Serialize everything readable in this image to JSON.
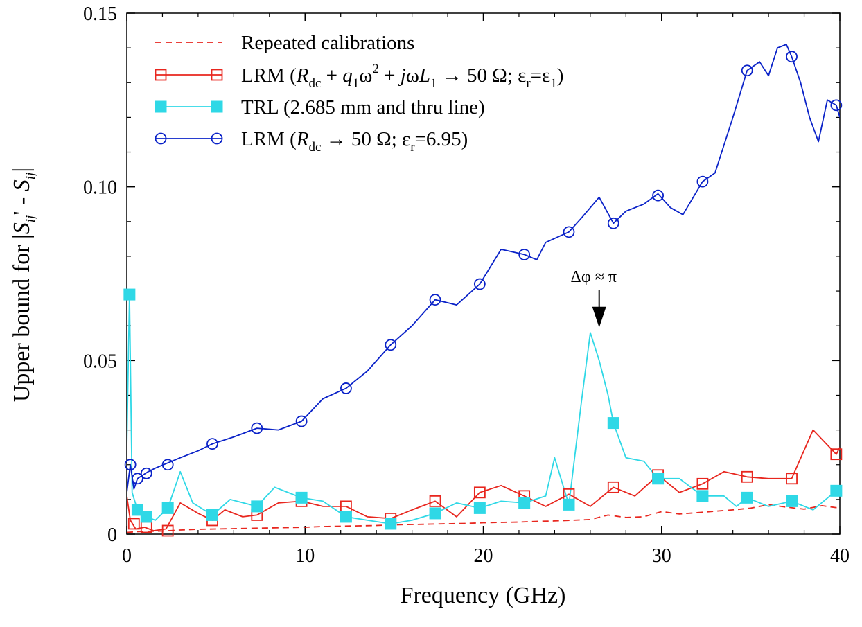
{
  "chart_data": {
    "type": "line",
    "title": "",
    "xlabel": "Frequency (GHz)",
    "ylabel": {
      "prefix": "Upper bound for |",
      "s1": "S",
      "sub1": "ij",
      "prime": "' - ",
      "s2": "S",
      "sub2": "ij",
      "suffix": "|"
    },
    "xlim": [
      0,
      40
    ],
    "ylim": [
      0,
      0.15
    ],
    "xticks": [
      0,
      10,
      20,
      30,
      40
    ],
    "xtick_labels": [
      "0",
      "10",
      "20",
      "30",
      "40"
    ],
    "yticks": [
      0,
      0.05,
      0.1,
      0.15
    ],
    "ytick_labels": [
      "0",
      "0.05",
      "0.10",
      "0.15"
    ],
    "grid": false,
    "legend_position": "top-left",
    "legend": [
      {
        "key": "repeated",
        "parts": [
          {
            "t": "Repeated calibrations"
          }
        ]
      },
      {
        "key": "lrm_full",
        "parts": [
          {
            "t": "LRM ("
          },
          {
            "t": "R",
            "i": true
          },
          {
            "t": "dc",
            "s": "sub"
          },
          {
            "t": " + "
          },
          {
            "t": "q",
            "i": true
          },
          {
            "t": "1",
            "s": "sub"
          },
          {
            "t": "ω"
          },
          {
            "t": "2",
            "s": "sup"
          },
          {
            "t": " + "
          },
          {
            "t": "j",
            "i": true
          },
          {
            "t": "ω"
          },
          {
            "t": "L",
            "i": true
          },
          {
            "t": "1",
            "s": "sub"
          },
          {
            "t": " → 50 Ω; ε"
          },
          {
            "t": "r",
            "s": "sub"
          },
          {
            "t": "=ε"
          },
          {
            "t": "1",
            "s": "sub"
          },
          {
            "t": ")"
          }
        ]
      },
      {
        "key": "trl",
        "parts": [
          {
            "t": "TRL (2.685 mm and thru line)"
          }
        ]
      },
      {
        "key": "lrm_dc",
        "parts": [
          {
            "t": "LRM ("
          },
          {
            "t": "R",
            "i": true
          },
          {
            "t": "dc",
            "s": "sub"
          },
          {
            "t": " → 50 Ω; ε"
          },
          {
            "t": "r",
            "s": "sub"
          },
          {
            "t": "=6.95)"
          }
        ]
      }
    ],
    "annotation": {
      "text": "Δφ ≈ π",
      "x": 26.5,
      "y": 0.0595
    },
    "series": [
      {
        "key": "repeated",
        "color": "#e8261e",
        "dash": true,
        "marker": "none",
        "x": [
          0,
          0.5,
          1,
          2,
          3,
          4,
          5,
          6,
          7,
          8,
          9,
          10,
          11,
          12,
          13,
          14,
          15,
          16,
          17,
          18,
          19,
          20,
          21,
          22,
          23,
          24,
          25,
          26,
          27,
          28,
          29,
          30,
          31,
          32,
          33,
          34,
          35,
          36,
          37,
          38,
          39,
          40
        ],
        "y": [
          0.0005,
          0.0007,
          0.0008,
          0.0009,
          0.0012,
          0.0014,
          0.0015,
          0.0016,
          0.0017,
          0.0018,
          0.0019,
          0.002,
          0.0022,
          0.0023,
          0.0024,
          0.0025,
          0.0027,
          0.0028,
          0.0029,
          0.003,
          0.0031,
          0.0033,
          0.0034,
          0.0035,
          0.0037,
          0.0038,
          0.004,
          0.0042,
          0.0055,
          0.0048,
          0.005,
          0.0065,
          0.0058,
          0.0062,
          0.0066,
          0.007,
          0.0075,
          0.0085,
          0.0078,
          0.0072,
          0.0082,
          0.0075
        ]
      },
      {
        "key": "lrm_full",
        "color": "#e8261e",
        "dash": false,
        "marker": "square-open",
        "x": [
          0,
          0.2,
          0.5,
          1,
          1.5,
          2.2,
          3,
          4,
          4.8,
          5.5,
          6.5,
          7.3,
          8.5,
          9.8,
          11,
          12.3,
          13.5,
          14.8,
          16,
          17.3,
          18.5,
          19.8,
          21,
          22.3,
          23.5,
          24.8,
          26,
          27.3,
          28.5,
          29.8,
          31,
          32.3,
          33.5,
          34.8,
          36,
          37.3,
          38.5,
          39.8,
          40
        ],
        "y": [
          0.011,
          0.004,
          0.0015,
          0.002,
          0.001,
          0.0015,
          0.009,
          0.006,
          0.004,
          0.007,
          0.005,
          0.0055,
          0.009,
          0.0095,
          0.008,
          0.008,
          0.005,
          0.0045,
          0.007,
          0.0095,
          0.005,
          0.012,
          0.014,
          0.011,
          0.008,
          0.0115,
          0.008,
          0.0135,
          0.011,
          0.017,
          0.012,
          0.0145,
          0.018,
          0.0165,
          0.016,
          0.016,
          0.03,
          0.023,
          0.025
        ]
      },
      {
        "key": "trl",
        "color": "#2fd8e6",
        "dash": false,
        "marker": "square-filled",
        "x": [
          0,
          0.15,
          0.3,
          0.6,
          1.1,
          1.6,
          2.3,
          3,
          3.7,
          4.8,
          5.8,
          7.3,
          8.3,
          9.8,
          11,
          12.3,
          13.5,
          14.8,
          16,
          17.3,
          18.5,
          19.8,
          21,
          22.3,
          23.5,
          24,
          24.8,
          25.5,
          26,
          26.5,
          27,
          27.3,
          28,
          29,
          29.8,
          31,
          32.3,
          33.5,
          34.2,
          34.8,
          36,
          37.3,
          38.5,
          39.8,
          40
        ],
        "y": [
          0.025,
          0.069,
          0.012,
          0.007,
          0.005,
          0.004,
          0.0075,
          0.018,
          0.009,
          0.0055,
          0.01,
          0.008,
          0.0135,
          0.0105,
          0.0095,
          0.005,
          0.004,
          0.003,
          0.004,
          0.006,
          0.009,
          0.0075,
          0.0095,
          0.009,
          0.011,
          0.022,
          0.0085,
          0.038,
          0.058,
          0.05,
          0.04,
          0.032,
          0.022,
          0.021,
          0.016,
          0.016,
          0.011,
          0.011,
          0.008,
          0.0105,
          0.008,
          0.0095,
          0.007,
          0.0125,
          0.012
        ]
      },
      {
        "key": "lrm_dc",
        "color": "#0a22c8",
        "dash": false,
        "marker": "circle-open",
        "x": [
          0,
          0.2,
          0.4,
          0.6,
          0.9,
          1.2,
          1.6,
          2.3,
          3,
          4,
          4.8,
          6,
          7.3,
          8.5,
          9.8,
          11,
          12.3,
          13.5,
          14.8,
          16,
          17.3,
          18.5,
          19.8,
          21,
          22.3,
          23,
          23.5,
          24.8,
          25.5,
          26,
          26.5,
          27.3,
          28,
          29,
          29.8,
          30.5,
          31.2,
          32.3,
          33,
          34,
          34.8,
          35.5,
          36,
          36.5,
          37,
          37.3,
          37.8,
          38.3,
          38.8,
          39.3,
          39.8,
          40
        ],
        "y": [
          0.012,
          0.02,
          0.013,
          0.016,
          0.017,
          0.018,
          0.019,
          0.0205,
          0.022,
          0.024,
          0.026,
          0.028,
          0.0305,
          0.03,
          0.0325,
          0.039,
          0.042,
          0.047,
          0.0545,
          0.06,
          0.0675,
          0.066,
          0.072,
          0.082,
          0.0805,
          0.079,
          0.084,
          0.087,
          0.091,
          0.094,
          0.097,
          0.0895,
          0.093,
          0.095,
          0.098,
          0.094,
          0.092,
          0.1015,
          0.104,
          0.12,
          0.1335,
          0.136,
          0.132,
          0.14,
          0.141,
          0.1375,
          0.13,
          0.12,
          0.113,
          0.125,
          0.1235,
          0.12
        ]
      }
    ],
    "markers": {
      "lrm_full": [
        [
          0.4,
          0.003
        ],
        [
          1.1,
          0.002
        ],
        [
          2.3,
          0.001
        ],
        [
          4.8,
          0.004
        ],
        [
          7.3,
          0.0055
        ],
        [
          9.8,
          0.0095
        ],
        [
          12.3,
          0.008
        ],
        [
          14.8,
          0.0045
        ],
        [
          17.3,
          0.0095
        ],
        [
          19.8,
          0.012
        ],
        [
          22.3,
          0.011
        ],
        [
          24.8,
          0.0115
        ],
        [
          27.3,
          0.0135
        ],
        [
          29.8,
          0.017
        ],
        [
          32.3,
          0.0145
        ],
        [
          34.8,
          0.0165
        ],
        [
          37.3,
          0.016
        ],
        [
          39.8,
          0.023
        ]
      ],
      "trl": [
        [
          0.15,
          0.069
        ],
        [
          0.6,
          0.007
        ],
        [
          1.1,
          0.005
        ],
        [
          2.3,
          0.0075
        ],
        [
          4.8,
          0.0055
        ],
        [
          7.3,
          0.008
        ],
        [
          9.8,
          0.0105
        ],
        [
          12.3,
          0.005
        ],
        [
          14.8,
          0.003
        ],
        [
          17.3,
          0.006
        ],
        [
          19.8,
          0.0075
        ],
        [
          22.3,
          0.009
        ],
        [
          24.8,
          0.0085
        ],
        [
          27.3,
          0.032
        ],
        [
          29.8,
          0.016
        ],
        [
          32.3,
          0.011
        ],
        [
          34.8,
          0.0105
        ],
        [
          37.3,
          0.0095
        ],
        [
          39.8,
          0.0125
        ]
      ],
      "lrm_dc": [
        [
          0.2,
          0.02
        ],
        [
          0.6,
          0.016
        ],
        [
          1.1,
          0.0175
        ],
        [
          2.3,
          0.02
        ],
        [
          4.8,
          0.026
        ],
        [
          7.3,
          0.0305
        ],
        [
          9.8,
          0.0325
        ],
        [
          12.3,
          0.042
        ],
        [
          14.8,
          0.0545
        ],
        [
          17.3,
          0.0675
        ],
        [
          19.8,
          0.072
        ],
        [
          22.3,
          0.0805
        ],
        [
          24.8,
          0.087
        ],
        [
          27.3,
          0.0895
        ],
        [
          29.8,
          0.0975
        ],
        [
          32.3,
          0.1015
        ],
        [
          34.8,
          0.1335
        ],
        [
          37.3,
          0.1375
        ],
        [
          39.8,
          0.1235
        ]
      ]
    }
  }
}
